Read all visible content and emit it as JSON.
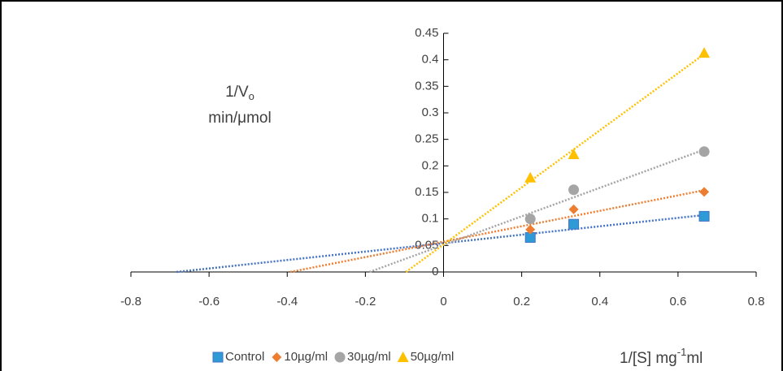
{
  "chart_data": {
    "type": "scatter",
    "x_label": {
      "main": "1/[S] mg",
      "sup": "-1",
      "end": "ml"
    },
    "y_label": {
      "main": "1/V",
      "sub": "o",
      "unit": "min/μmol"
    },
    "xlim": [
      -0.8,
      0.8
    ],
    "xticks": [
      -0.8,
      -0.6,
      -0.4,
      -0.2,
      0,
      0.2,
      0.4,
      0.6,
      0.8
    ],
    "ylim": [
      0,
      0.45
    ],
    "yticks": [
      0,
      0.05,
      0.1,
      0.15,
      0.2,
      0.25,
      0.3,
      0.35,
      0.4,
      0.45
    ],
    "trendline": "linear",
    "series": [
      {
        "name": "Control",
        "color": "#2e9bd6",
        "line_color": "#4472c4",
        "marker": "square",
        "x": [
          0.222,
          0.333,
          0.667
        ],
        "values": [
          0.065,
          0.09,
          0.105
        ]
      },
      {
        "name": "10µg/ml",
        "color": "#ed7d31",
        "line_color": "#ed7d31",
        "marker": "diamond",
        "x": [
          0.222,
          0.333,
          0.667
        ],
        "values": [
          0.08,
          0.118,
          0.151
        ]
      },
      {
        "name": "30µg/ml",
        "color": "#a5a5a5",
        "line_color": "#a5a5a5",
        "marker": "circle",
        "x": [
          0.222,
          0.333,
          0.667
        ],
        "values": [
          0.1,
          0.155,
          0.227
        ]
      },
      {
        "name": "50µg/ml",
        "color": "#ffc000",
        "line_color": "#ffc000",
        "marker": "triangle",
        "x": [
          0.222,
          0.333,
          0.667
        ],
        "values": [
          0.178,
          0.222,
          0.413
        ]
      }
    ]
  }
}
